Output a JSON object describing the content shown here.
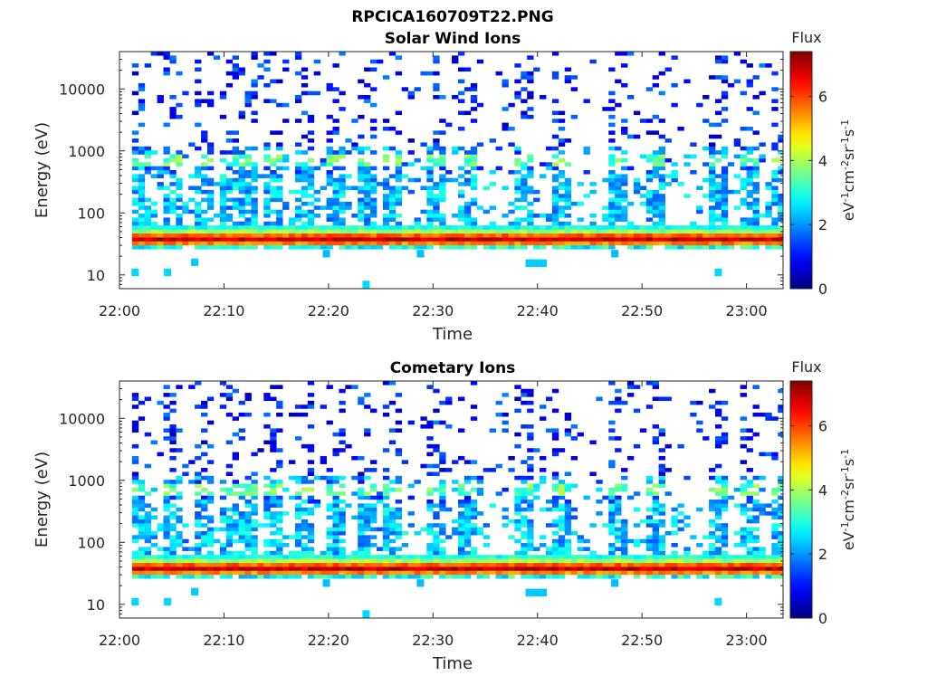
{
  "suptitle": "RPCICA160709T22.PNG",
  "colormap": "jet",
  "colorbar": {
    "label": "Flux",
    "unit_parts": [
      "eV",
      "-1",
      "cm",
      "-2",
      "sr",
      "-1",
      "s",
      "-1"
    ],
    "range": [
      0,
      7.4
    ],
    "ticks": [
      "0",
      "2",
      "4",
      "6"
    ]
  },
  "chart_data": [
    {
      "type": "heatmap",
      "title": "Solar Wind Ions",
      "xlabel": "Time",
      "ylabel": "Energy (eV)",
      "x_ticks": [
        "22:00",
        "22:10",
        "22:20",
        "22:30",
        "22:40",
        "22:50",
        "23:00"
      ],
      "x_range_minutes": [
        0,
        63.5
      ],
      "y_ticks": [
        "10",
        "100",
        "1000",
        "10000"
      ],
      "y_scale": "log",
      "ylim": [
        6,
        40000
      ],
      "z_range": [
        0,
        7.4
      ],
      "bands": [
        {
          "e_lo": 29,
          "e_hi": 52,
          "flux": 6.0,
          "note": "main solar wind peak"
        },
        {
          "e_lo": 52,
          "e_hi": 62,
          "flux": 3.0
        },
        {
          "e_lo": 26,
          "e_hi": 30,
          "flux": 2.6
        }
      ],
      "gaps_minutes": [
        {
          "t0": 0.0,
          "t1": 0.8
        }
      ],
      "bursts_minutes": [
        1.6,
        4.6,
        7.9,
        10.0,
        12.0,
        14.2,
        17.5,
        20.5,
        23.6,
        26.0,
        30.0,
        33.2,
        38.5,
        42.3,
        47.2,
        51.0,
        57.1,
        60.1,
        63.0
      ],
      "low_energy_patches": [
        {
          "t": 1.5,
          "e": 11,
          "flux": 2.5
        },
        {
          "t": 4.6,
          "e": 11,
          "flux": 2.5
        },
        {
          "t": 7.2,
          "e": 16,
          "flux": 2.4
        },
        {
          "t": 19.8,
          "e": 22,
          "flux": 2.3
        },
        {
          "t": 23.6,
          "e": 7,
          "flux": 2.5
        },
        {
          "t": 28.8,
          "e": 22,
          "flux": 2.3
        },
        {
          "t": 39.2,
          "e": 15.5,
          "flux": 2.4
        },
        {
          "t": 40.2,
          "e": 15.5,
          "flux": 2.4
        },
        {
          "t": 47.4,
          "e": 22,
          "flux": 2.3
        },
        {
          "t": 57.3,
          "e": 11,
          "flux": 2.5
        }
      ]
    },
    {
      "type": "heatmap",
      "title": "Cometary Ions",
      "xlabel": "Time",
      "ylabel": "Energy (eV)",
      "x_ticks": [
        "22:00",
        "22:10",
        "22:20",
        "22:30",
        "22:40",
        "22:50",
        "23:00"
      ],
      "x_range_minutes": [
        0,
        63.5
      ],
      "y_ticks": [
        "10",
        "100",
        "1000",
        "10000"
      ],
      "y_scale": "log",
      "ylim": [
        6,
        40000
      ],
      "z_range": [
        0,
        7.4
      ],
      "bands": [
        {
          "e_lo": 29,
          "e_hi": 52,
          "flux": 6.0,
          "note": "main solar wind peak"
        },
        {
          "e_lo": 52,
          "e_hi": 62,
          "flux": 3.0
        },
        {
          "e_lo": 26,
          "e_hi": 30,
          "flux": 2.6
        }
      ],
      "gaps_minutes": [
        {
          "t0": 0.0,
          "t1": 0.8
        }
      ],
      "bursts_minutes": [
        1.6,
        4.6,
        7.9,
        10.0,
        12.0,
        14.2,
        17.5,
        20.5,
        23.6,
        26.0,
        30.0,
        33.2,
        38.5,
        42.3,
        47.2,
        51.0,
        57.1,
        60.1,
        63.0
      ],
      "low_energy_patches": [
        {
          "t": 1.5,
          "e": 11,
          "flux": 2.5
        },
        {
          "t": 4.6,
          "e": 11,
          "flux": 2.5
        },
        {
          "t": 7.2,
          "e": 16,
          "flux": 2.4
        },
        {
          "t": 19.8,
          "e": 22,
          "flux": 2.3
        },
        {
          "t": 23.6,
          "e": 7,
          "flux": 2.5
        },
        {
          "t": 28.8,
          "e": 22,
          "flux": 2.3
        },
        {
          "t": 39.2,
          "e": 15.5,
          "flux": 2.4
        },
        {
          "t": 40.2,
          "e": 15.5,
          "flux": 2.4
        },
        {
          "t": 47.4,
          "e": 22,
          "flux": 2.3
        },
        {
          "t": 57.3,
          "e": 11,
          "flux": 2.5
        }
      ]
    }
  ]
}
